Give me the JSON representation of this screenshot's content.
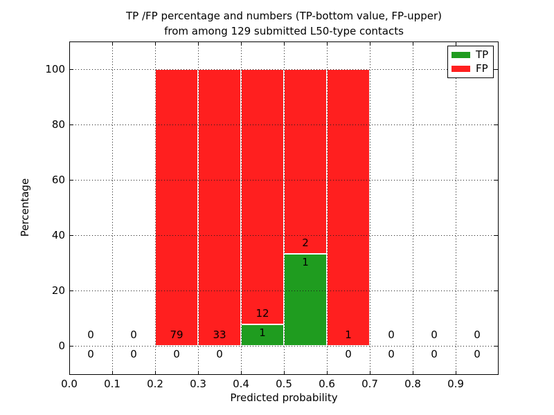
{
  "chart_data": {
    "type": "bar",
    "stacked": true,
    "title": "TP /FP percentage and numbers (TP-bottom value, FP-upper) from among 129 submitted L50-type contacts",
    "title_lines": [
      "TP /FP percentage and numbers (TP-bottom value, FP-upper)",
      "from among 129 submitted L50-type contacts"
    ],
    "xlabel": "Predicted probability",
    "ylabel": "Percentage",
    "xlim": [
      0.0,
      1.0
    ],
    "ylim": [
      -10.5,
      110
    ],
    "grid": "dotted",
    "legend_position": "upper-right",
    "colors": {
      "tp": "#1f9c1f",
      "fp": "#ff1f1f"
    },
    "legend": [
      {
        "label": "TP",
        "series": "tp"
      },
      {
        "label": "FP",
        "series": "fp"
      }
    ],
    "xticks": [
      {
        "v": 0.0,
        "label": "0.0"
      },
      {
        "v": 0.1,
        "label": "0.1"
      },
      {
        "v": 0.2,
        "label": "0.2"
      },
      {
        "v": 0.3,
        "label": "0.3"
      },
      {
        "v": 0.4,
        "label": "0.4"
      },
      {
        "v": 0.5,
        "label": "0.5"
      },
      {
        "v": 0.6,
        "label": "0.6"
      },
      {
        "v": 0.7,
        "label": "0.7"
      },
      {
        "v": 0.8,
        "label": "0.8"
      },
      {
        "v": 0.9,
        "label": "0.9"
      }
    ],
    "yticks": [
      {
        "v": 0,
        "label": "0"
      },
      {
        "v": 20,
        "label": "20"
      },
      {
        "v": 40,
        "label": "40"
      },
      {
        "v": 60,
        "label": "60"
      },
      {
        "v": 80,
        "label": "80"
      },
      {
        "v": 100,
        "label": "100"
      }
    ],
    "bins": [
      {
        "x0": 0.0,
        "x1": 0.1,
        "tp": 0,
        "fp": 0
      },
      {
        "x0": 0.1,
        "x1": 0.2,
        "tp": 0,
        "fp": 0
      },
      {
        "x0": 0.2,
        "x1": 0.3,
        "tp": 0,
        "fp": 79
      },
      {
        "x0": 0.3,
        "x1": 0.4,
        "tp": 0,
        "fp": 33
      },
      {
        "x0": 0.4,
        "x1": 0.5,
        "tp": 1,
        "fp": 12
      },
      {
        "x0": 0.5,
        "x1": 0.6,
        "tp": 1,
        "fp": 2
      },
      {
        "x0": 0.6,
        "x1": 0.7,
        "tp": 0,
        "fp": 1
      },
      {
        "x0": 0.7,
        "x1": 0.8,
        "tp": 0,
        "fp": 0
      },
      {
        "x0": 0.8,
        "x1": 0.9,
        "tp": 0,
        "fp": 0
      },
      {
        "x0": 0.9,
        "x1": 1.0,
        "tp": 0,
        "fp": 0
      }
    ],
    "note": "Each nonempty bin: green TP segment from 0% to 100*tp/(tp+fp)%, red FP segment stacked above it to 100%. FP count printed above the TP/FP boundary, TP count printed below it."
  }
}
